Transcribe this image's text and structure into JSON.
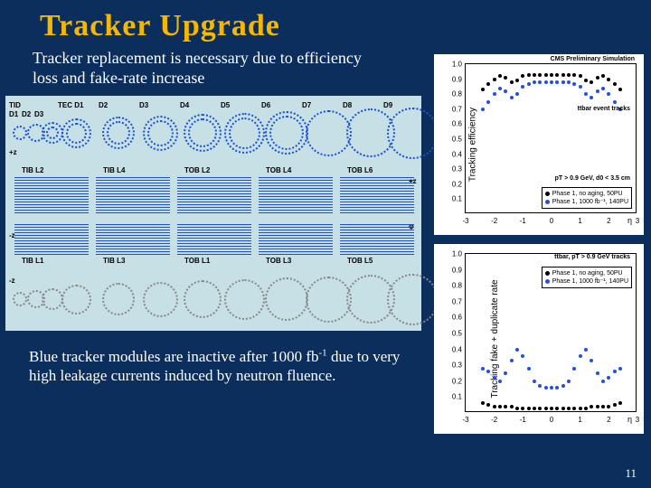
{
  "title": "Tracker  Upgrade",
  "intro": "Tracker replacement is necessary due to efficiency loss and fake-rate increase",
  "footer_html": "Blue tracker modules are inactive after 1000 fb<sup>-1</sup> due to very high leakage currents induced by neutron fluence.",
  "page_number": "11",
  "diagram": {
    "bg": "#c6e0e6",
    "blue": "#1a4fd6",
    "gray": "#888888",
    "row1": {
      "left_labels": [
        "TID",
        "D1",
        "D2",
        "D3"
      ],
      "tec_labels": [
        "TEC D1",
        "D2",
        "D3",
        "D4",
        "D5",
        "D6",
        "D7",
        "D8",
        "D9"
      ],
      "plus_z": "+z",
      "rings": 12
    },
    "row2": {
      "labels": [
        "TIB L2",
        "TIB L4",
        "TOB L2",
        "TOB L4",
        "TOB L6"
      ],
      "plus_z": "+z"
    },
    "row3": {
      "labels": [
        "TIB L1",
        "TIB L3",
        "TOB L1",
        "TOB L3",
        "TOB L5"
      ],
      "minus_z": "-z"
    },
    "row4": {
      "rings": 12,
      "minus_z": "-z"
    }
  },
  "chart_a": {
    "title": "CMS Preliminary Simulation",
    "ylabel": "Tracking efficiency",
    "xlabel": "η",
    "ylim": [
      0,
      1.0
    ],
    "ytick_step": 0.1,
    "xlim": [
      -3,
      3
    ],
    "xtick_step": 1,
    "anno1": "ttbar event tracks",
    "anno2": "pT > 0.9 GeV, d0 < 3.5 cm",
    "legend": [
      "Phase 1, no aging, 50PU",
      "Phase 1, 1000 fb⁻¹, 140PU"
    ],
    "colors": [
      "#000000",
      "#2050e0"
    ],
    "series0": [
      [
        -2.4,
        0.83
      ],
      [
        -2.2,
        0.87
      ],
      [
        -2.0,
        0.9
      ],
      [
        -1.8,
        0.92
      ],
      [
        -1.6,
        0.91
      ],
      [
        -1.4,
        0.88
      ],
      [
        -1.2,
        0.89
      ],
      [
        -1.0,
        0.92
      ],
      [
        -0.8,
        0.93
      ],
      [
        -0.6,
        0.93
      ],
      [
        -0.4,
        0.93
      ],
      [
        -0.2,
        0.93
      ],
      [
        0,
        0.93
      ],
      [
        0.2,
        0.93
      ],
      [
        0.4,
        0.93
      ],
      [
        0.6,
        0.93
      ],
      [
        0.8,
        0.93
      ],
      [
        1.0,
        0.92
      ],
      [
        1.2,
        0.89
      ],
      [
        1.4,
        0.88
      ],
      [
        1.6,
        0.91
      ],
      [
        1.8,
        0.92
      ],
      [
        2.0,
        0.9
      ],
      [
        2.2,
        0.87
      ],
      [
        2.4,
        0.83
      ]
    ],
    "series1": [
      [
        -2.4,
        0.7
      ],
      [
        -2.2,
        0.75
      ],
      [
        -2.0,
        0.8
      ],
      [
        -1.8,
        0.84
      ],
      [
        -1.6,
        0.82
      ],
      [
        -1.4,
        0.78
      ],
      [
        -1.2,
        0.8
      ],
      [
        -1.0,
        0.85
      ],
      [
        -0.8,
        0.87
      ],
      [
        -0.6,
        0.88
      ],
      [
        -0.4,
        0.88
      ],
      [
        -0.2,
        0.88
      ],
      [
        0,
        0.88
      ],
      [
        0.2,
        0.88
      ],
      [
        0.4,
        0.88
      ],
      [
        0.6,
        0.88
      ],
      [
        0.8,
        0.87
      ],
      [
        1.0,
        0.85
      ],
      [
        1.2,
        0.8
      ],
      [
        1.4,
        0.78
      ],
      [
        1.6,
        0.82
      ],
      [
        1.8,
        0.84
      ],
      [
        2.0,
        0.8
      ],
      [
        2.2,
        0.75
      ],
      [
        2.4,
        0.7
      ]
    ]
  },
  "chart_b": {
    "ylabel": "Tracking fake + duplicate rate",
    "xlabel": "η",
    "ylim": [
      0,
      1.0
    ],
    "ytick_step": 0.1,
    "xlim": [
      -3,
      3
    ],
    "xtick_step": 1,
    "anno1": "ttbar, pT > 0.9 GeV tracks",
    "legend": [
      "Phase 1, no aging, 50PU",
      "Phase 1, 1000 fb⁻¹, 140PU"
    ],
    "colors": [
      "#000000",
      "#2050e0"
    ],
    "series0": [
      [
        -2.4,
        0.06
      ],
      [
        -2.2,
        0.05
      ],
      [
        -2.0,
        0.04
      ],
      [
        -1.8,
        0.04
      ],
      [
        -1.6,
        0.04
      ],
      [
        -1.4,
        0.04
      ],
      [
        -1.2,
        0.03
      ],
      [
        -1.0,
        0.03
      ],
      [
        -0.8,
        0.03
      ],
      [
        -0.6,
        0.03
      ],
      [
        -0.4,
        0.03
      ],
      [
        -0.2,
        0.03
      ],
      [
        0,
        0.03
      ],
      [
        0.2,
        0.03
      ],
      [
        0.4,
        0.03
      ],
      [
        0.6,
        0.03
      ],
      [
        0.8,
        0.03
      ],
      [
        1.0,
        0.03
      ],
      [
        1.2,
        0.03
      ],
      [
        1.4,
        0.04
      ],
      [
        1.6,
        0.04
      ],
      [
        1.8,
        0.04
      ],
      [
        2.0,
        0.04
      ],
      [
        2.2,
        0.05
      ],
      [
        2.4,
        0.06
      ]
    ],
    "series1": [
      [
        -2.4,
        0.28
      ],
      [
        -2.2,
        0.26
      ],
      [
        -2.0,
        0.22
      ],
      [
        -1.8,
        0.2
      ],
      [
        -1.6,
        0.25
      ],
      [
        -1.4,
        0.33
      ],
      [
        -1.2,
        0.4
      ],
      [
        -1.0,
        0.36
      ],
      [
        -0.8,
        0.28
      ],
      [
        -0.6,
        0.2
      ],
      [
        -0.4,
        0.17
      ],
      [
        -0.2,
        0.16
      ],
      [
        0,
        0.16
      ],
      [
        0.2,
        0.16
      ],
      [
        0.4,
        0.17
      ],
      [
        0.6,
        0.2
      ],
      [
        0.8,
        0.28
      ],
      [
        1.0,
        0.36
      ],
      [
        1.2,
        0.4
      ],
      [
        1.4,
        0.33
      ],
      [
        1.6,
        0.25
      ],
      [
        1.8,
        0.2
      ],
      [
        2.0,
        0.22
      ],
      [
        2.2,
        0.26
      ],
      [
        2.4,
        0.28
      ]
    ]
  }
}
